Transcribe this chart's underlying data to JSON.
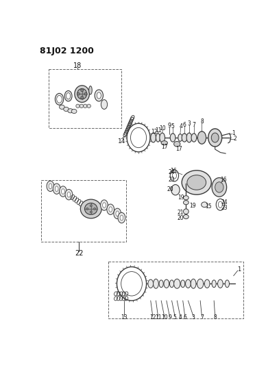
{
  "title": "81J02 1200",
  "bg": "#ffffff",
  "gray": "#3a3a3a",
  "lgray": "#aaaaaa",
  "dgray": "#666666",
  "fig_w": 4.07,
  "fig_h": 5.33,
  "dpi": 100
}
